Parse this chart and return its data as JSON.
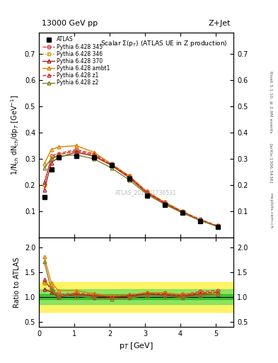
{
  "title_top": "13000 GeV pp",
  "title_right": "Z+Jet",
  "plot_title": "Scalar Σ(p_T) (ATLAS UE in Z production)",
  "watermark": "ATLAS_2019_I1736531",
  "right_label": "Rivet 3.1.10, ≥ 2.9M events",
  "arxiv_label": "[arXiv:1306.3436]",
  "inspire_label": "mcplots.cern.ch",
  "xlabel": "p_T [GeV]",
  "ylabel": "1/N_ch dN_ch/dp_T [GeV⁻¹]",
  "ylabel_ratio": "Ratio to ATLAS",
  "xlim": [
    0,
    5.5
  ],
  "ylim_main": [
    0.0,
    0.78
  ],
  "ylim_ratio": [
    0.4,
    2.2
  ],
  "yticks_main": [
    0.1,
    0.2,
    0.3,
    0.4,
    0.5,
    0.6,
    0.7
  ],
  "yticks_ratio": [
    0.5,
    1.0,
    1.5,
    2.0
  ],
  "atlas_x": [
    0.15,
    0.35,
    0.55,
    1.05,
    1.55,
    2.05,
    2.55,
    3.05,
    3.55,
    4.05,
    4.55,
    5.05
  ],
  "atlas_y": [
    0.155,
    0.26,
    0.305,
    0.31,
    0.305,
    0.275,
    0.225,
    0.16,
    0.125,
    0.095,
    0.063,
    0.04
  ],
  "py345_x": [
    0.15,
    0.35,
    0.55,
    1.05,
    1.55,
    2.05,
    2.55,
    3.05,
    3.55,
    4.05,
    4.55,
    5.05
  ],
  "py345_y": [
    0.2,
    0.31,
    0.32,
    0.335,
    0.32,
    0.28,
    0.235,
    0.175,
    0.135,
    0.1,
    0.07,
    0.045
  ],
  "py346_x": [
    0.15,
    0.35,
    0.55,
    1.05,
    1.55,
    2.05,
    2.55,
    3.05,
    3.55,
    4.05,
    4.55,
    5.05
  ],
  "py346_y": [
    0.2,
    0.305,
    0.315,
    0.33,
    0.315,
    0.278,
    0.232,
    0.173,
    0.133,
    0.098,
    0.068,
    0.043
  ],
  "py370_x": [
    0.15,
    0.35,
    0.55,
    1.05,
    1.55,
    2.05,
    2.55,
    3.05,
    3.55,
    4.05,
    4.55,
    5.05
  ],
  "py370_y": [
    0.18,
    0.285,
    0.305,
    0.325,
    0.31,
    0.275,
    0.228,
    0.17,
    0.13,
    0.096,
    0.067,
    0.042
  ],
  "pyambt1_x": [
    0.15,
    0.35,
    0.55,
    1.05,
    1.55,
    2.05,
    2.55,
    3.05,
    3.55,
    4.05,
    4.55,
    5.05
  ],
  "pyambt1_y": [
    0.28,
    0.335,
    0.345,
    0.35,
    0.325,
    0.28,
    0.235,
    0.175,
    0.135,
    0.1,
    0.068,
    0.043
  ],
  "pyz1_x": [
    0.15,
    0.35,
    0.55,
    1.05,
    1.55,
    2.05,
    2.55,
    3.05,
    3.55,
    4.05,
    4.55,
    5.05
  ],
  "pyz1_y": [
    0.21,
    0.3,
    0.315,
    0.33,
    0.315,
    0.276,
    0.232,
    0.172,
    0.133,
    0.098,
    0.068,
    0.044
  ],
  "pyz2_x": [
    0.15,
    0.35,
    0.55,
    1.05,
    1.55,
    2.05,
    2.55,
    3.05,
    3.55,
    4.05,
    4.55,
    5.05
  ],
  "pyz2_y": [
    0.265,
    0.3,
    0.31,
    0.315,
    0.3,
    0.265,
    0.22,
    0.165,
    0.127,
    0.094,
    0.065,
    0.042
  ],
  "color_345": "#d44040",
  "color_346": "#c8a000",
  "color_370": "#aa2020",
  "color_ambt1": "#e08000",
  "color_z1": "#c03030",
  "color_z2": "#808020",
  "ratio_345": [
    1.29,
    1.19,
    1.05,
    1.08,
    1.05,
    1.02,
    1.04,
    1.09,
    1.08,
    1.05,
    1.11,
    1.13
  ],
  "ratio_346": [
    1.29,
    1.17,
    1.03,
    1.06,
    1.03,
    1.01,
    1.03,
    1.08,
    1.06,
    1.03,
    1.08,
    1.08
  ],
  "ratio_370": [
    1.16,
    1.1,
    1.0,
    1.05,
    1.02,
    1.0,
    1.01,
    1.06,
    1.04,
    1.01,
    1.06,
    1.05
  ],
  "ratio_ambt1": [
    1.81,
    1.29,
    1.13,
    1.13,
    1.07,
    1.02,
    1.04,
    1.09,
    1.08,
    1.05,
    1.08,
    1.08
  ],
  "ratio_z1": [
    1.35,
    1.15,
    1.03,
    1.06,
    1.03,
    1.0,
    1.03,
    1.07,
    1.06,
    1.03,
    1.08,
    1.1
  ],
  "ratio_z2": [
    1.71,
    1.15,
    1.02,
    1.02,
    0.98,
    0.96,
    0.98,
    1.03,
    1.02,
    0.99,
    1.03,
    1.05
  ]
}
